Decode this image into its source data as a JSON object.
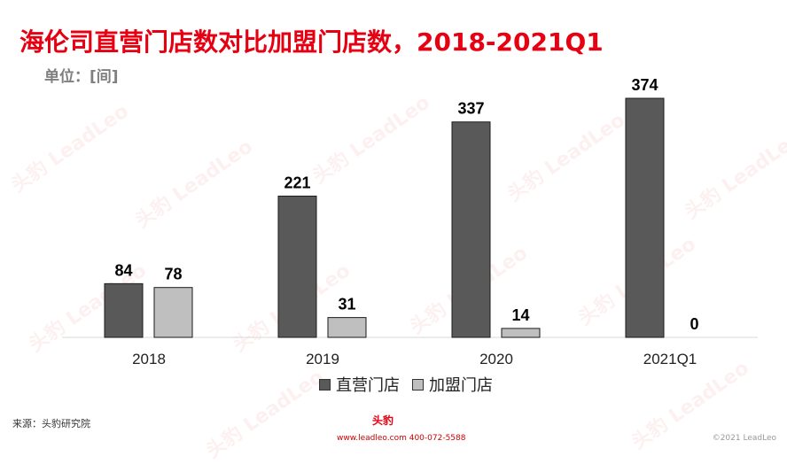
{
  "title": "海伦司直营门店数对比加盟门店数，2018-2021Q1",
  "unit_label": "单位：[间]",
  "source": "来源：头豹研究院",
  "brand_logo_text": "头豹",
  "contact": "www.leadleo.com  400-072-5588",
  "copyright": "©2021 LeadLeo",
  "watermark": "头豹 LeadLeo",
  "colors": {
    "direct": "#595959",
    "franchise": "#bfbfbf",
    "title": "#e60012"
  },
  "chart_data": {
    "type": "bar",
    "title": "海伦司直营门店数对比加盟门店数，2018-2021Q1",
    "categories": [
      "2018",
      "2019",
      "2020",
      "2021Q1"
    ],
    "series": [
      {
        "name": "直营门店",
        "values": [
          84,
          221,
          337,
          374
        ]
      },
      {
        "name": "加盟门店",
        "values": [
          78,
          31,
          14,
          0
        ]
      }
    ],
    "ylim": [
      0,
      374
    ],
    "grid": false,
    "legend": "bottom"
  }
}
